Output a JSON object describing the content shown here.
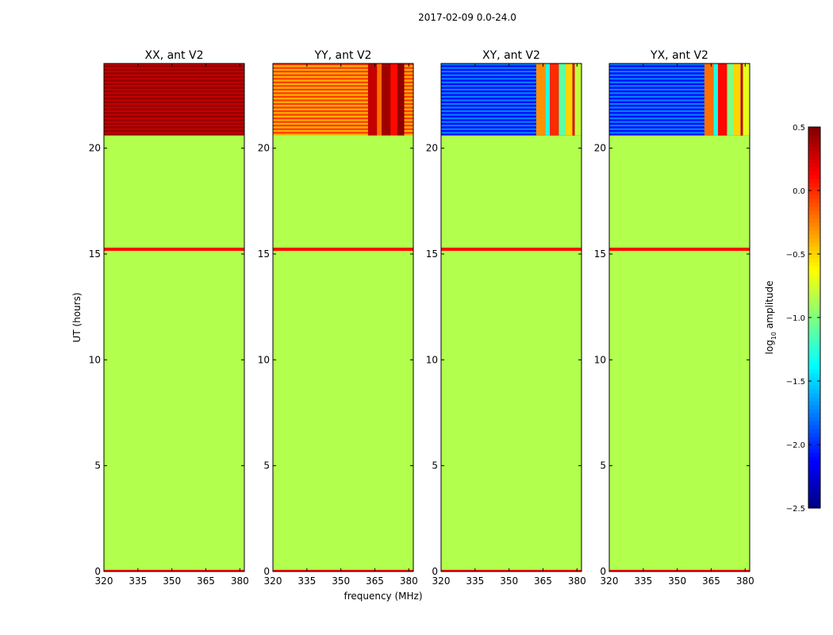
{
  "chart_data": {
    "type": "heatmap",
    "suptitle": "2017-02-09 0.0-24.0",
    "xlabel": "frequency (MHz)",
    "ylabel": "UT (hours)",
    "xlim": [
      320,
      382
    ],
    "ylim": [
      0,
      24
    ],
    "xticks": [
      320,
      335,
      350,
      365,
      380
    ],
    "yticks": [
      0,
      5,
      10,
      15,
      20
    ],
    "panels": [
      {
        "title": "XX, ant V2",
        "upper_level": 0.45,
        "band_levels": []
      },
      {
        "title": "YY, ant V2",
        "upper_level": -0.4,
        "band_levels": [
          0.3,
          -0.2,
          0.4,
          0.1,
          0.45
        ]
      },
      {
        "title": "XY, ant V2",
        "upper_level": -2.1,
        "band_levels": [
          -0.3,
          -1.3,
          0.0,
          -1.1,
          -0.5,
          0.2,
          -0.8
        ]
      },
      {
        "title": "YX, ant V2",
        "upper_level": -2.1,
        "band_levels": [
          -0.2,
          -1.3,
          0.1,
          -1.0,
          -0.5,
          0.3,
          -0.7
        ]
      }
    ],
    "regions": {
      "baseline_level": -0.85,
      "upper_block_utc": [
        20.6,
        24
      ],
      "stripe_utc": [
        15.15,
        15.3
      ],
      "stripe_level": 0.1,
      "bottom_strip_utc": [
        0,
        0.08
      ],
      "bands_mhz": [
        [
          362,
          366
        ],
        [
          366,
          368
        ],
        [
          368,
          372
        ],
        [
          372,
          375
        ],
        [
          375,
          378
        ],
        [
          378,
          379
        ],
        [
          379,
          382
        ]
      ]
    },
    "colorbar": {
      "label_prefix": "log",
      "label_subscript": "10",
      "label_suffix": " amplitude",
      "colormap": "jet",
      "range": [
        -2.5,
        0.5
      ],
      "ticks": [
        0.5,
        0.0,
        -0.5,
        -1.0,
        -1.5,
        -2.0,
        -2.5
      ],
      "tick_labels": [
        "0.5",
        "0.0",
        "−0.5",
        "−1.0",
        "−1.5",
        "−2.0",
        "−2.5"
      ]
    }
  }
}
